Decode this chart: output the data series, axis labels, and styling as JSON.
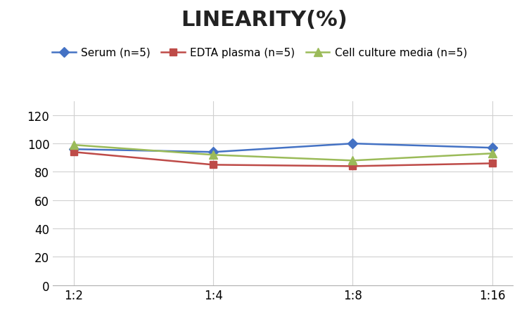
{
  "title": "LINEARITY(%)",
  "x_labels": [
    "1:2",
    "1:4",
    "1:8",
    "1:16"
  ],
  "series": [
    {
      "label": "Serum (n=5)",
      "values": [
        96,
        94,
        100,
        97
      ],
      "color": "#4472C4",
      "marker": "D",
      "marker_size": 7
    },
    {
      "label": "EDTA plasma (n=5)",
      "values": [
        94,
        85,
        84,
        86
      ],
      "color": "#BE4B48",
      "marker": "s",
      "marker_size": 7
    },
    {
      "label": "Cell culture media (n=5)",
      "values": [
        99,
        92,
        88,
        93
      ],
      "color": "#9BBB59",
      "marker": "^",
      "marker_size": 8
    }
  ],
  "ylim": [
    0,
    130
  ],
  "yticks": [
    0,
    20,
    40,
    60,
    80,
    100,
    120
  ],
  "title_fontsize": 22,
  "legend_fontsize": 11,
  "tick_fontsize": 12,
  "background_color": "#FFFFFF",
  "grid_color": "#D0D0D0",
  "line_width": 1.8
}
